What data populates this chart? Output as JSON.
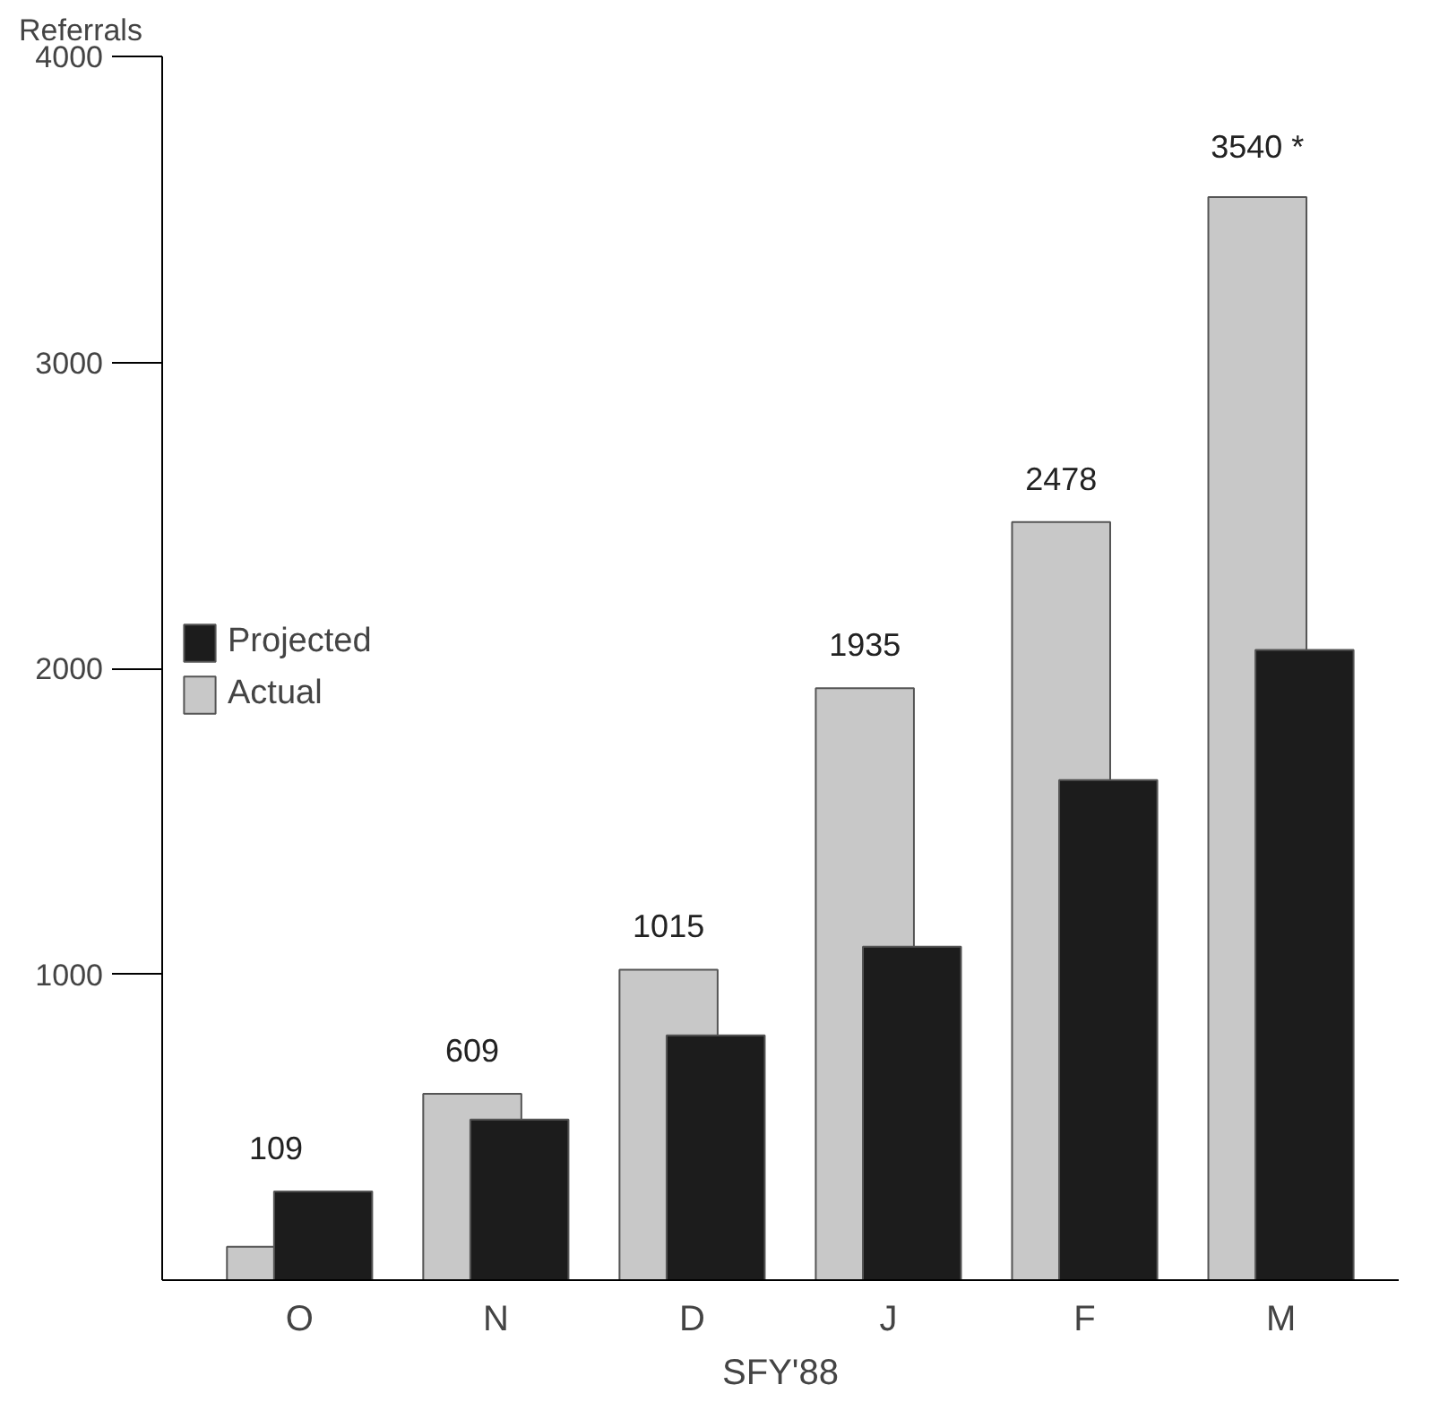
{
  "chart_data": {
    "type": "bar",
    "ylabel": "Referrals",
    "xlabel": "SFY'88",
    "categories": [
      "O",
      "N",
      "D",
      "J",
      "F",
      "M"
    ],
    "series": [
      {
        "name": "Actual",
        "color": "#c8c8c8",
        "values": [
          109,
          609,
          1015,
          1935,
          2478,
          3540
        ],
        "value_labels": [
          "109",
          "609",
          "1015",
          "1935",
          "2478",
          "3540 *"
        ]
      },
      {
        "name": "Projected",
        "color": "#1c1c1c",
        "values": [
          290,
          525,
          800,
          1090,
          1635,
          2060
        ]
      }
    ],
    "ylim": [
      0,
      4000
    ],
    "yticks": [
      1000,
      2000,
      3000,
      4000
    ],
    "grid": false,
    "legend": "left"
  }
}
